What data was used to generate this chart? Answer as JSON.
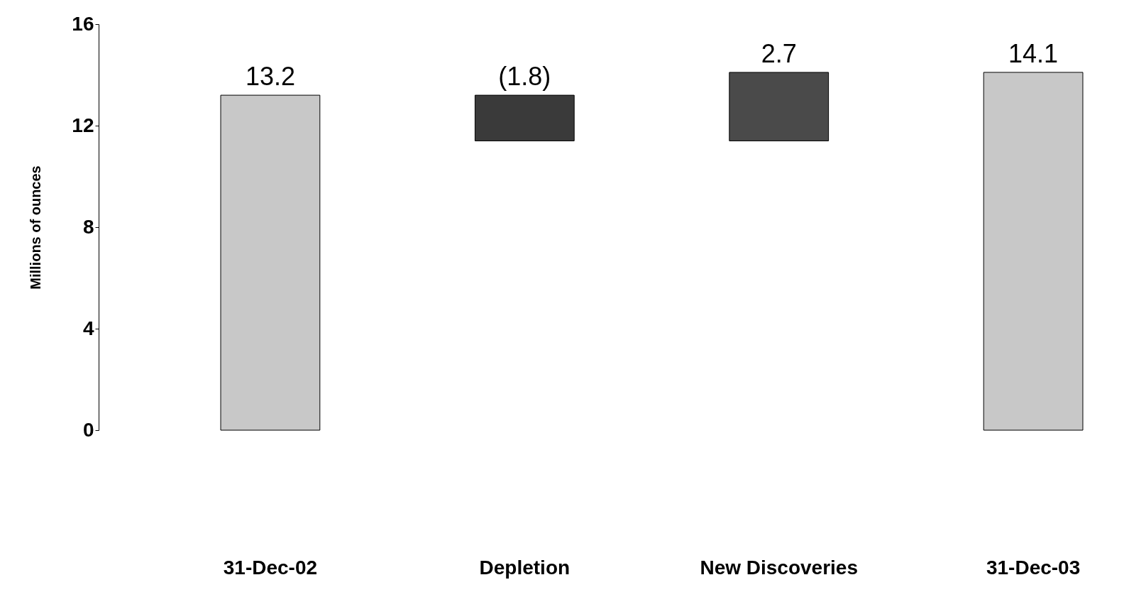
{
  "chart_data": {
    "type": "bar",
    "ylabel": "Millions of ounces",
    "categories": [
      "31-Dec-02",
      "Depletion",
      "New Discoveries",
      "31-Dec-03"
    ],
    "values": [
      13.2,
      -1.8,
      2.7,
      14.1
    ],
    "base": [
      0,
      13.2,
      11.4,
      0
    ],
    "colors": [
      "#c8c8c8",
      "#3a3a3a",
      "#4a4a4a",
      "#c8c8c8"
    ],
    "value_labels": [
      "13.2",
      "(1.8)",
      "2.7",
      "14.1"
    ],
    "ylim": [
      0,
      16
    ],
    "yticks": [
      0,
      4,
      8,
      12,
      16
    ],
    "grid": false
  }
}
